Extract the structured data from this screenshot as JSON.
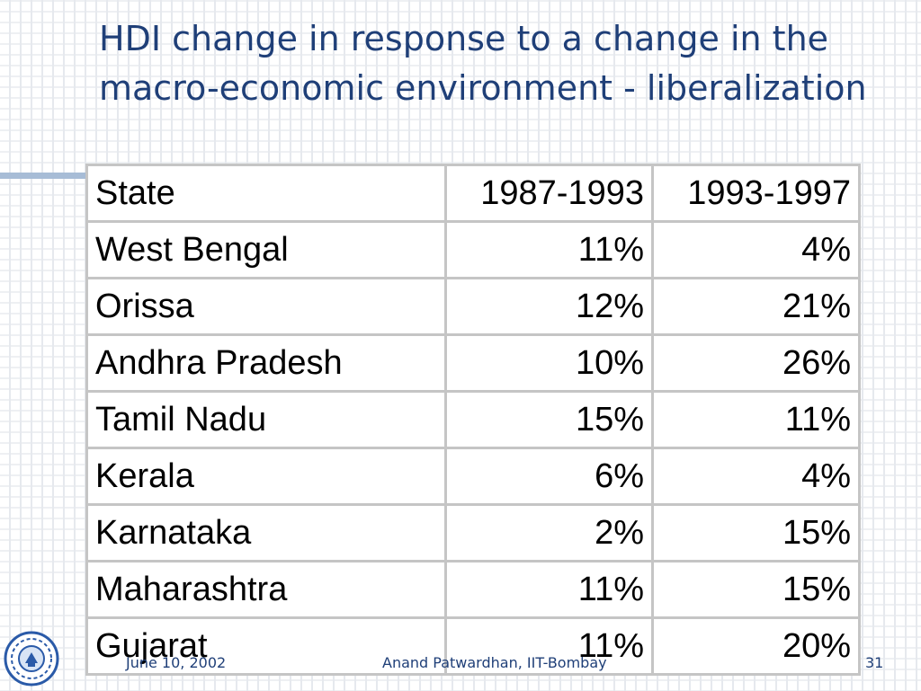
{
  "slide": {
    "title": "HDI change in response to a change in the macro-economic environment - liberalization"
  },
  "table": {
    "headers": [
      "State",
      "1987-1993",
      "1993-1997"
    ],
    "rows": [
      [
        "West Bengal",
        "11%",
        "4%"
      ],
      [
        "Orissa",
        "12%",
        "21%"
      ],
      [
        "Andhra Pradesh",
        "10%",
        "26%"
      ],
      [
        "Tamil Nadu",
        "15%",
        "11%"
      ],
      [
        "Kerala",
        "6%",
        "4%"
      ],
      [
        "Karnataka",
        "2%",
        "15%"
      ],
      [
        "Maharashtra",
        "11%",
        "15%"
      ],
      [
        "Gujarat",
        "11%",
        "20%"
      ]
    ]
  },
  "footer": {
    "date": "June 10, 2002",
    "author": "Anand Patwardhan, IIT-Bombay",
    "page": "31"
  },
  "logo": {
    "icon": "iit-bombay-logo-icon"
  },
  "colors": {
    "title": "#1f3f78",
    "rule": "#a7bcd6",
    "border": "#c5c5c5"
  }
}
